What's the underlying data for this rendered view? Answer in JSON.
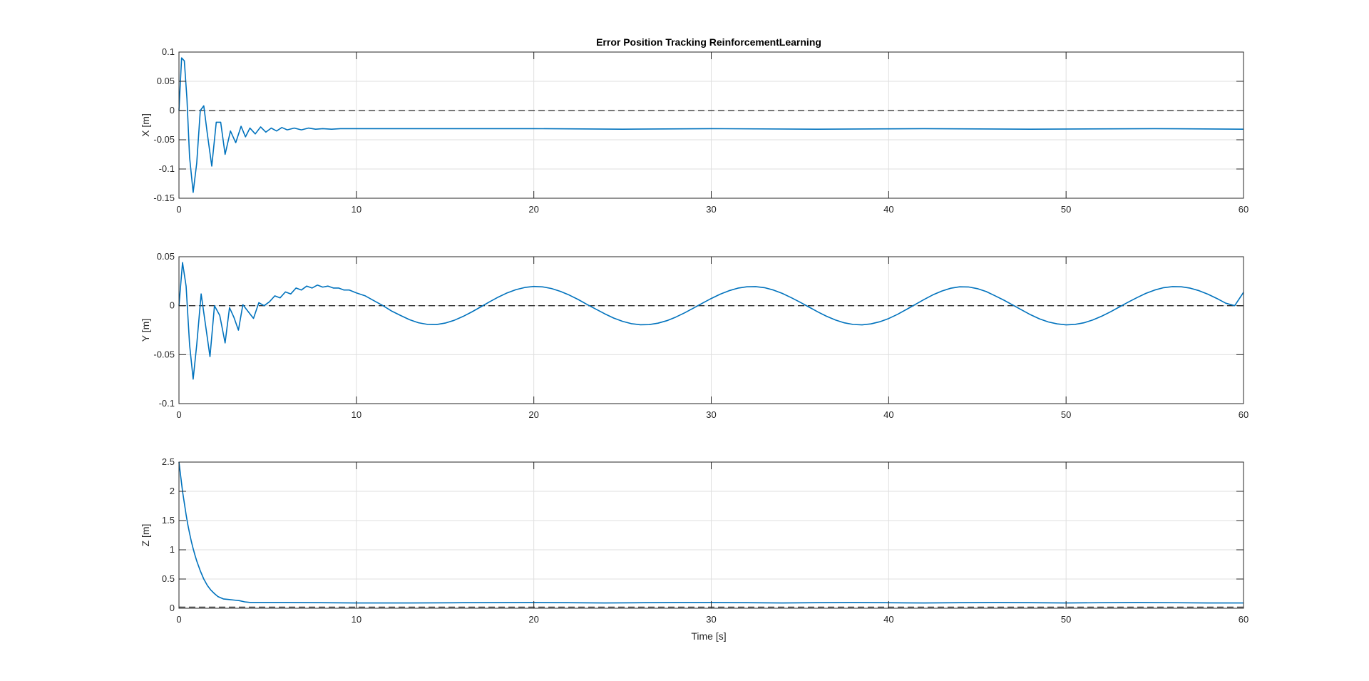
{
  "figure": {
    "title": "Error Position Tracking ReinforcementLearning",
    "xlabel": "Time [s]"
  },
  "colors": {
    "series": "#0072BD",
    "reference": "#262626",
    "grid": "#DFDFDF",
    "axes": "#262626"
  },
  "chart_data": [
    {
      "type": "line",
      "title": "Error Position Tracking ReinforcementLearning",
      "xlabel": "",
      "ylabel": "X [m]",
      "xlim": [
        0,
        60
      ],
      "ylim": [
        -0.15,
        0.1
      ],
      "xticks": [
        "0",
        "10",
        "20",
        "30",
        "40",
        "50",
        "60"
      ],
      "yticks": [
        "0.1",
        "0.05",
        "0",
        "-0.05",
        "-0.1",
        "-0.15"
      ],
      "grid": true,
      "reference_line": 0,
      "series": [
        {
          "x": [
            0,
            0.15,
            0.3,
            0.45,
            0.6,
            0.8,
            1.0,
            1.2,
            1.4,
            1.6,
            1.85,
            2.1,
            2.35,
            2.6,
            2.9,
            3.2,
            3.5,
            3.75,
            4.0,
            4.3,
            4.6,
            4.9,
            5.2,
            5.5,
            5.8,
            6.1,
            6.5,
            6.9,
            7.3,
            7.7,
            8.1,
            8.6,
            9.1,
            10,
            12,
            15,
            20,
            25,
            30,
            36,
            42,
            48,
            55,
            60
          ],
          "y": [
            0.0,
            0.09,
            0.085,
            0.02,
            -0.08,
            -0.14,
            -0.09,
            0.0,
            0.008,
            -0.04,
            -0.095,
            -0.02,
            -0.02,
            -0.075,
            -0.035,
            -0.055,
            -0.027,
            -0.045,
            -0.03,
            -0.04,
            -0.028,
            -0.037,
            -0.03,
            -0.035,
            -0.029,
            -0.033,
            -0.03,
            -0.033,
            -0.03,
            -0.032,
            -0.031,
            -0.032,
            -0.031,
            -0.031,
            -0.031,
            -0.031,
            -0.031,
            -0.032,
            -0.031,
            -0.032,
            -0.031,
            -0.032,
            -0.031,
            -0.032
          ]
        }
      ]
    },
    {
      "type": "line",
      "title": "",
      "xlabel": "",
      "ylabel": "Y [m]",
      "xlim": [
        0,
        60
      ],
      "ylim": [
        -0.1,
        0.05
      ],
      "xticks": [
        "0",
        "10",
        "20",
        "30",
        "40",
        "50",
        "60"
      ],
      "yticks": [
        "0.05",
        "0",
        "-0.05",
        "-0.1"
      ],
      "grid": true,
      "reference_line": 0,
      "series": [
        {
          "x": [
            0,
            0.2,
            0.4,
            0.6,
            0.8,
            1.0,
            1.25,
            1.5,
            1.75,
            2.0,
            2.3,
            2.6,
            2.85,
            3.1,
            3.35,
            3.6,
            3.9,
            4.2,
            4.5,
            4.8,
            5.1,
            5.4,
            5.7,
            6.0,
            6.3,
            6.6,
            6.9,
            7.2,
            7.5,
            7.8,
            8.1,
            8.4,
            8.7,
            9.0,
            9.3,
            9.6,
            10,
            10.5,
            11,
            11.5,
            12,
            12.5,
            13,
            13.5,
            14,
            14.5,
            15,
            15.5,
            16,
            16.5,
            17,
            17.5,
            18,
            18.5,
            19,
            19.5,
            20,
            20.5,
            21,
            21.5,
            22,
            22.5,
            23,
            23.5,
            24,
            24.5,
            25,
            25.5,
            26,
            26.5,
            27,
            27.5,
            28,
            28.5,
            29,
            29.5,
            30,
            30.5,
            31,
            31.5,
            32,
            32.5,
            33,
            33.5,
            34,
            34.5,
            35,
            35.5,
            36,
            36.5,
            37,
            37.5,
            38,
            38.5,
            39,
            39.5,
            40,
            40.5,
            41,
            41.5,
            42,
            42.5,
            43,
            43.5,
            44,
            44.5,
            45,
            45.5,
            46,
            46.5,
            47,
            47.5,
            48,
            48.5,
            49,
            49.5,
            50,
            50.5,
            51,
            51.5,
            52,
            52.5,
            53,
            53.5,
            54,
            54.5,
            55,
            55.5,
            56,
            56.5,
            57,
            57.5,
            58,
            58.5,
            59,
            59.5,
            60
          ],
          "y": [
            0.0,
            0.044,
            0.02,
            -0.04,
            -0.075,
            -0.04,
            0.012,
            -0.02,
            -0.052,
            0.0,
            -0.01,
            -0.038,
            -0.002,
            -0.012,
            -0.025,
            0.001,
            -0.006,
            -0.013,
            0.003,
            0.0,
            0.004,
            0.01,
            0.008,
            0.014,
            0.012,
            0.018,
            0.016,
            0.02,
            0.018,
            0.021,
            0.019,
            0.02,
            0.018,
            0.018,
            0.016,
            0.016,
            0.013,
            0.01,
            0.005,
            0.0,
            -0.0056,
            -0.0101,
            -0.0144,
            -0.0174,
            -0.0191,
            -0.0193,
            -0.0178,
            -0.015,
            -0.0111,
            -0.0064,
            -0.0013,
            0.0039,
            0.0088,
            0.0131,
            0.0164,
            0.0186,
            0.0196,
            0.0192,
            0.0175,
            0.0146,
            0.0108,
            0.0063,
            0.0013,
            -0.0036,
            -0.0083,
            -0.0126,
            -0.016,
            -0.0184,
            -0.0195,
            -0.0193,
            -0.0179,
            -0.0153,
            -0.0117,
            -0.0073,
            -0.0025,
            0.0025,
            0.0073,
            0.0117,
            0.0153,
            0.0179,
            0.0193,
            0.0195,
            0.0184,
            0.016,
            0.0126,
            0.0083,
            0.0036,
            -0.0013,
            -0.0063,
            -0.0108,
            -0.0146,
            -0.0175,
            -0.0192,
            -0.0196,
            -0.0186,
            -0.0164,
            -0.0131,
            -0.0088,
            -0.0039,
            0.0013,
            0.0064,
            0.0111,
            0.015,
            0.0178,
            0.0193,
            0.0191,
            0.0174,
            0.0144,
            0.0101,
            0.0056,
            0.0006,
            -0.0044,
            -0.0093,
            -0.0134,
            -0.0166,
            -0.0186,
            -0.0196,
            -0.0191,
            -0.0175,
            -0.0146,
            -0.0108,
            -0.0063,
            -0.0013,
            0.0036,
            0.0083,
            0.0126,
            0.016,
            0.0184,
            0.0195,
            0.0193,
            0.0179,
            0.0153,
            0.0117,
            0.0073,
            0.0025,
            0.0,
            0.0136
          ]
        }
      ]
    },
    {
      "type": "line",
      "title": "",
      "xlabel": "Time [s]",
      "ylabel": "Z [m]",
      "xlim": [
        0,
        60
      ],
      "ylim": [
        0,
        2.5
      ],
      "xticks": [
        "0",
        "10",
        "20",
        "30",
        "40",
        "50",
        "60"
      ],
      "yticks": [
        "2.5",
        "2",
        "1.5",
        "1",
        "0.5",
        "0"
      ],
      "grid": true,
      "reference_line": 0.02,
      "series": [
        {
          "x": [
            0,
            0.1,
            0.2,
            0.3,
            0.4,
            0.5,
            0.6,
            0.7,
            0.8,
            0.9,
            1.0,
            1.2,
            1.4,
            1.6,
            1.8,
            2.0,
            2.2,
            2.5,
            2.8,
            3.1,
            3.4,
            3.7,
            4.0,
            5,
            6,
            8,
            10,
            13,
            16,
            20,
            24,
            28,
            30,
            34,
            38,
            42,
            46,
            50,
            54,
            58,
            60
          ],
          "y": [
            2.5,
            2.25,
            2.0,
            1.8,
            1.6,
            1.43,
            1.28,
            1.14,
            1.02,
            0.91,
            0.81,
            0.64,
            0.5,
            0.39,
            0.31,
            0.25,
            0.2,
            0.16,
            0.15,
            0.14,
            0.13,
            0.11,
            0.1,
            0.1,
            0.1,
            0.095,
            0.09,
            0.09,
            0.095,
            0.1,
            0.09,
            0.1,
            0.1,
            0.09,
            0.1,
            0.09,
            0.1,
            0.09,
            0.1,
            0.09,
            0.09
          ]
        }
      ]
    }
  ]
}
